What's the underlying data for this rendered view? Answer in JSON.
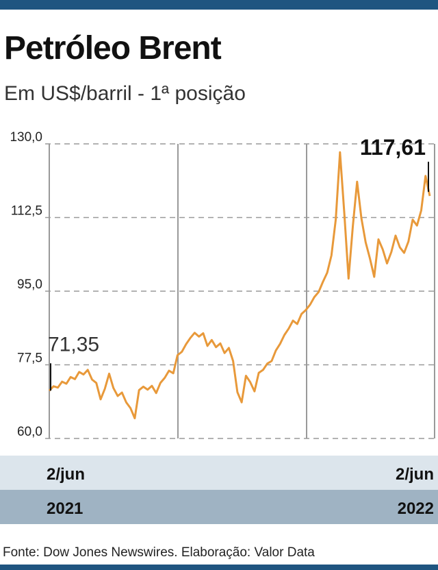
{
  "chart_data": {
    "type": "line",
    "title": "Petróleo Brent",
    "subtitle": "Em US$/barril - 1ª posição",
    "source": "Fonte: Dow Jones Newswires. Elaboração: Valor Data",
    "categories": [
      null,
      null,
      null,
      null,
      null,
      null,
      null,
      null,
      null,
      null,
      null,
      null,
      null,
      null,
      null,
      null,
      null,
      null,
      null,
      null,
      null,
      null,
      null,
      null,
      null,
      null,
      null,
      null,
      null,
      null,
      null,
      null,
      null,
      null,
      null,
      null,
      null,
      null,
      null,
      null,
      null,
      null,
      null,
      null,
      null,
      null,
      null,
      null,
      null,
      null,
      null,
      null,
      null,
      null,
      null,
      null,
      null,
      null,
      null,
      null,
      null,
      null,
      null,
      null,
      null,
      null,
      null,
      null,
      null,
      null,
      null,
      null,
      null,
      null,
      null,
      null,
      null,
      null,
      null,
      null,
      null,
      null,
      null,
      null,
      null,
      null,
      null,
      null,
      null,
      null
    ],
    "x_labels": [
      {
        "date": "2/jun",
        "year": "2021"
      },
      {
        "date": "2/jun",
        "year": "2022"
      }
    ],
    "series": [
      {
        "name": "Brent",
        "color": "#e8993a",
        "values": [
          71.35,
          72.4,
          72.1,
          73.5,
          73.0,
          74.6,
          74.1,
          75.8,
          75.2,
          76.3,
          74.0,
          73.2,
          69.3,
          71.8,
          75.4,
          72.0,
          70.1,
          70.9,
          68.6,
          67.2,
          64.8,
          71.5,
          72.3,
          71.6,
          72.5,
          70.8,
          73.2,
          74.4,
          76.1,
          75.5,
          79.8,
          80.6,
          82.4,
          83.9,
          85.1,
          84.2,
          85.0,
          82.0,
          83.4,
          81.7,
          82.6,
          80.3,
          81.5,
          78.4,
          71.0,
          68.6,
          74.9,
          73.4,
          71.2,
          75.6,
          76.3,
          77.8,
          78.4,
          80.9,
          82.5,
          84.6,
          86.1,
          88.0,
          87.2,
          89.6,
          90.5,
          91.8,
          93.6,
          94.8,
          97.2,
          99.4,
          103.5,
          112.0,
          128.0,
          113.5,
          98.0,
          110.5,
          121.0,
          112.4,
          106.6,
          102.8,
          98.4,
          107.3,
          104.9,
          101.6,
          104.3,
          108.2,
          105.4,
          104.1,
          106.8,
          112.0,
          110.6,
          114.2,
          122.4,
          117.61
        ]
      }
    ],
    "annotations": [
      {
        "value": 71.35,
        "label": "71,35"
      },
      {
        "value": 117.61,
        "label": "117,61"
      }
    ],
    "ylim": [
      60,
      130
    ],
    "yticks": [
      {
        "value": 60,
        "label": "60,0"
      },
      {
        "value": 77.5,
        "label": "77,5"
      },
      {
        "value": 95,
        "label": "95,0"
      },
      {
        "value": 112.5,
        "label": "112,5"
      },
      {
        "value": 130,
        "label": "130,0"
      }
    ],
    "grid": true
  }
}
